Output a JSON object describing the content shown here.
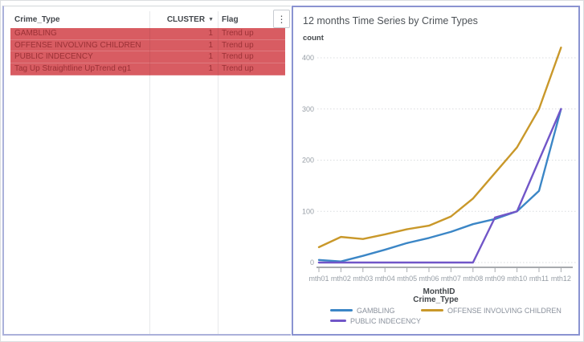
{
  "table": {
    "columns": [
      {
        "label": "Crime_Type",
        "align": "left"
      },
      {
        "label": "CLUSTER",
        "align": "right",
        "sorted": "desc"
      },
      {
        "label": "Flag",
        "align": "left"
      }
    ],
    "sort_icon": "▼",
    "menu_icon": "⋮",
    "rows": [
      {
        "crime_type": "GAMBLING",
        "cluster": "1",
        "flag": "Trend up"
      },
      {
        "crime_type": "OFFENSE INVOLVING CHILDREN",
        "cluster": "1",
        "flag": "Trend up"
      },
      {
        "crime_type": "PUBLIC INDECENCY",
        "cluster": "1",
        "flag": "Trend up"
      },
      {
        "crime_type": "Tag Up Straightline UpTrend eg1",
        "cluster": "1",
        "flag": "Trend up"
      }
    ],
    "row_bg_color": "#d85c62",
    "row_text_color": "#9b3136"
  },
  "chart": {
    "title": "12 months Time Series by Crime Types",
    "y_axis_label": "count",
    "x_axis_label": "MonthID",
    "legend_title": "Crime_Type"
  },
  "chart_data": {
    "type": "line",
    "title": "12 months Time Series by Crime Types",
    "xlabel": "MonthID",
    "ylabel": "count",
    "x": [
      "mth01",
      "mth02",
      "mth03",
      "mth04",
      "mth05",
      "mth06",
      "mth07",
      "mth08",
      "mth09",
      "mth10",
      "mth11",
      "mth12"
    ],
    "series": [
      {
        "name": "GAMBLING",
        "color": "#3b86c6",
        "values": [
          5,
          2,
          13,
          25,
          38,
          48,
          60,
          75,
          85,
          100,
          140,
          300
        ]
      },
      {
        "name": "OFFENSE INVOLVING CHILDREN",
        "color": "#c9982a",
        "values": [
          30,
          50,
          46,
          55,
          65,
          72,
          90,
          125,
          175,
          225,
          300,
          420
        ]
      },
      {
        "name": "PUBLIC INDECENCY",
        "color": "#7156c8",
        "values": [
          0,
          0,
          0,
          0,
          0,
          0,
          0,
          0,
          88,
          100,
          200,
          300
        ]
      }
    ],
    "ylim": [
      0,
      400
    ],
    "yticks": [
      0,
      100,
      200,
      300,
      400
    ],
    "grid": "horizontal-dotted",
    "legend_position": "bottom"
  }
}
